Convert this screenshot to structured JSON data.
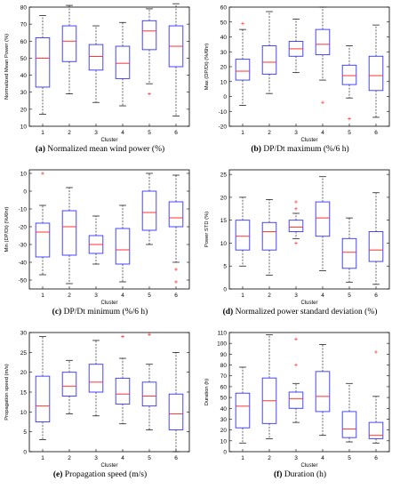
{
  "colors": {
    "box": "#3333ff",
    "median": "#ff3333",
    "outlier": "#ff3333",
    "whisker": "#000000"
  },
  "chart_data": [
    {
      "type": "boxplot",
      "caption": {
        "letter": "(a)",
        "text": "Normalized mean wind power (%)"
      },
      "xlabel": "Cluster",
      "ylabel": "Normalized Mean Power (%)",
      "categories": [
        "1",
        "2",
        "3",
        "4",
        "5",
        "6"
      ],
      "ylim": [
        10,
        80
      ],
      "yticks": [
        10,
        20,
        30,
        40,
        50,
        60,
        70,
        80
      ],
      "boxes": [
        {
          "min": 17,
          "q1": 33,
          "median": 50,
          "q3": 62,
          "max": 75,
          "outliers": []
        },
        {
          "min": 29,
          "q1": 48,
          "median": 60,
          "q3": 69,
          "max": 81,
          "outliers": []
        },
        {
          "min": 24,
          "q1": 43,
          "median": 51,
          "q3": 58,
          "max": 69,
          "outliers": []
        },
        {
          "min": 22,
          "q1": 38,
          "median": 47,
          "q3": 57,
          "max": 71,
          "outliers": []
        },
        {
          "min": 35,
          "q1": 55,
          "median": 66,
          "q3": 72,
          "max": 79,
          "outliers": [
            29
          ]
        },
        {
          "min": 16,
          "q1": 45,
          "median": 57,
          "q3": 69,
          "max": 82,
          "outliers": []
        }
      ]
    },
    {
      "type": "boxplot",
      "caption": {
        "letter": "(b)",
        "text": "DP/Dt maximum (%/6 h)"
      },
      "xlabel": "Cluster",
      "ylabel": "Max (DP/Dt) (%/6hr)",
      "categories": [
        "1",
        "2",
        "3",
        "4",
        "5",
        "6"
      ],
      "ylim": [
        -20,
        60
      ],
      "yticks": [
        -20,
        -10,
        0,
        10,
        20,
        30,
        40,
        50,
        60
      ],
      "boxes": [
        {
          "min": -6,
          "q1": 11,
          "median": 17,
          "q3": 25,
          "max": 45,
          "outliers": [
            49
          ]
        },
        {
          "min": 2,
          "q1": 15,
          "median": 23,
          "q3": 34,
          "max": 57,
          "outliers": []
        },
        {
          "min": 16,
          "q1": 27,
          "median": 32,
          "q3": 37,
          "max": 52,
          "outliers": []
        },
        {
          "min": 11,
          "q1": 28,
          "median": 35,
          "q3": 45,
          "max": 60,
          "outliers": [
            -4
          ]
        },
        {
          "min": -1,
          "q1": 8,
          "median": 14,
          "q3": 21,
          "max": 34,
          "outliers": [
            -15
          ]
        },
        {
          "min": -14,
          "q1": 4,
          "median": 14,
          "q3": 27,
          "max": 48,
          "outliers": []
        }
      ]
    },
    {
      "type": "boxplot",
      "caption": {
        "letter": "(c)",
        "text": "DP/Dt minimum (%/6 h)"
      },
      "xlabel": "Cluster",
      "ylabel": "Min (DP/Dt) (%/6hr)",
      "categories": [
        "1",
        "2",
        "3",
        "4",
        "5",
        "6"
      ],
      "ylim": [
        -55,
        12
      ],
      "yticks": [
        -50,
        -40,
        -30,
        -20,
        -10,
        0,
        10
      ],
      "boxes": [
        {
          "min": -47,
          "q1": -37,
          "median": -23,
          "q3": -18,
          "max": -8,
          "outliers": [
            10
          ]
        },
        {
          "min": -52,
          "q1": -36,
          "median": -20,
          "q3": -11,
          "max": 2,
          "outliers": []
        },
        {
          "min": -41,
          "q1": -35,
          "median": -30,
          "q3": -25,
          "max": -14,
          "outliers": []
        },
        {
          "min": -51,
          "q1": -41,
          "median": -33,
          "q3": -21,
          "max": -8,
          "outliers": []
        },
        {
          "min": -30,
          "q1": -22,
          "median": -12,
          "q3": 0,
          "max": 10,
          "outliers": []
        },
        {
          "min": -40,
          "q1": -20,
          "median": -15,
          "q3": -6,
          "max": 9,
          "outliers": [
            -44,
            -51
          ]
        }
      ]
    },
    {
      "type": "boxplot",
      "caption": {
        "letter": "(d)",
        "text": "Normalized power standard deviation (%)"
      },
      "xlabel": "Cluster",
      "ylabel": "Power STD (%)",
      "categories": [
        "1",
        "2",
        "3",
        "4",
        "5",
        "6"
      ],
      "ylim": [
        0,
        26
      ],
      "yticks": [
        0,
        5,
        10,
        15,
        20,
        25
      ],
      "boxes": [
        {
          "min": 5,
          "q1": 8.5,
          "median": 11.5,
          "q3": 15,
          "max": 20,
          "outliers": []
        },
        {
          "min": 3,
          "q1": 8.5,
          "median": 12.5,
          "q3": 14.5,
          "max": 19.5,
          "outliers": []
        },
        {
          "min": 11,
          "q1": 12.5,
          "median": 13.5,
          "q3": 15,
          "max": 16.5,
          "outliers": [
            10,
            17.5,
            19
          ]
        },
        {
          "min": 4,
          "q1": 11.5,
          "median": 15.5,
          "q3": 19,
          "max": 24.5,
          "outliers": []
        },
        {
          "min": 1.5,
          "q1": 4.5,
          "median": 8,
          "q3": 11,
          "max": 15.5,
          "outliers": []
        },
        {
          "min": 1,
          "q1": 6,
          "median": 8.5,
          "q3": 12.5,
          "max": 21,
          "outliers": []
        }
      ]
    },
    {
      "type": "boxplot",
      "caption": {
        "letter": "(e)",
        "text": "Propagation speed (m/s)"
      },
      "xlabel": "Cluster",
      "ylabel": "Propagation speed (m/s)",
      "categories": [
        "1",
        "2",
        "3",
        "4",
        "5",
        "6"
      ],
      "ylim": [
        0,
        30
      ],
      "yticks": [
        0,
        5,
        10,
        15,
        20,
        25,
        30
      ],
      "boxes": [
        {
          "min": 3,
          "q1": 7.5,
          "median": 11.5,
          "q3": 19,
          "max": 29,
          "outliers": []
        },
        {
          "min": 9.5,
          "q1": 14,
          "median": 16.5,
          "q3": 20,
          "max": 23,
          "outliers": []
        },
        {
          "min": 9,
          "q1": 15,
          "median": 17.5,
          "q3": 22,
          "max": 28,
          "outliers": []
        },
        {
          "min": 7,
          "q1": 12,
          "median": 14.5,
          "q3": 18.5,
          "max": 23.5,
          "outliers": [
            29
          ]
        },
        {
          "min": 5.5,
          "q1": 11.5,
          "median": 14,
          "q3": 17.5,
          "max": 22,
          "outliers": [
            29.5
          ]
        },
        {
          "min": 0,
          "q1": 5.5,
          "median": 9.5,
          "q3": 14.5,
          "max": 25,
          "outliers": []
        }
      ]
    },
    {
      "type": "boxplot",
      "caption": {
        "letter": "(f)",
        "text": "Duration (h)"
      },
      "xlabel": "Cluster",
      "ylabel": "Duration (h)",
      "categories": [
        "1",
        "2",
        "3",
        "4",
        "5",
        "6"
      ],
      "ylim": [
        0,
        110
      ],
      "yticks": [
        0,
        10,
        20,
        30,
        40,
        50,
        60,
        70,
        80,
        90,
        100,
        110
      ],
      "boxes": [
        {
          "min": 8,
          "q1": 22,
          "median": 42,
          "q3": 54,
          "max": 78,
          "outliers": []
        },
        {
          "min": 12,
          "q1": 26,
          "median": 47,
          "q3": 68,
          "max": 108,
          "outliers": []
        },
        {
          "min": 27,
          "q1": 40,
          "median": 49,
          "q3": 55,
          "max": 63,
          "outliers": [
            80,
            104
          ]
        },
        {
          "min": 15,
          "q1": 37,
          "median": 51,
          "q3": 74,
          "max": 99,
          "outliers": []
        },
        {
          "min": 9,
          "q1": 13,
          "median": 21,
          "q3": 37,
          "max": 63,
          "outliers": []
        },
        {
          "min": 8,
          "q1": 12,
          "median": 15,
          "q3": 27,
          "max": 51,
          "outliers": [
            92
          ]
        }
      ]
    }
  ]
}
